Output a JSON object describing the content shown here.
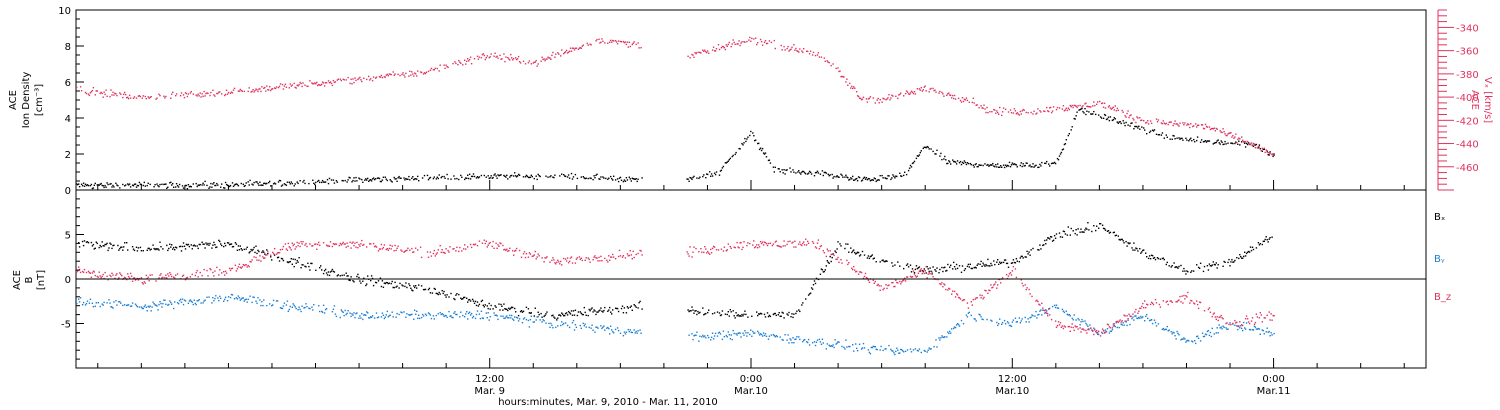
{
  "colors": {
    "black": "#000000",
    "red": "#e0335f",
    "blue": "#1a7fd4"
  },
  "chart_data": [
    {
      "type": "scatter",
      "panel": "top",
      "title": "",
      "x_range": [
        "2010-03-08 17:00",
        "2010-03-11 07:00"
      ],
      "ylabel_lines": [
        "ACE",
        "Ion Density",
        "[cm⁻³]"
      ],
      "ylim": [
        0,
        10
      ],
      "yticks": [
        0,
        2,
        4,
        6,
        8,
        10
      ],
      "yticklabels": [
        "0",
        "2",
        "4",
        "6",
        "8",
        "10"
      ],
      "y2label_lines": [
        "ACE",
        "Vₓ [km/s]"
      ],
      "y2lim": [
        -480,
        -325
      ],
      "y2ticks": [
        -460,
        -440,
        -420,
        -400,
        -380,
        -360,
        -340
      ],
      "y2ticklabels": [
        "-460",
        "-440",
        "-420",
        "-400",
        "-380",
        "-360",
        "-340"
      ],
      "data_gap": [
        "2010-03-09 19:00",
        "2010-03-09 21:00"
      ],
      "series": [
        {
          "axis": "left",
          "color": "#000000",
          "x": [
            "2010-03-08 17:00",
            "2010-03-08 20:00",
            "2010-03-09 00:00",
            "2010-03-09 06:00",
            "2010-03-09 09:00",
            "2010-03-09 12:00",
            "2010-03-09 15:00",
            "2010-03-09 19:00",
            "2010-03-09 21:00",
            "2010-03-09 22:30",
            "2010-03-09 23:30",
            "2010-03-10 00:00",
            "2010-03-10 01:00",
            "2010-03-10 02:00",
            "2010-03-10 03:00",
            "2010-03-10 05:00",
            "2010-03-10 07:00",
            "2010-03-10 08:00",
            "2010-03-10 09:00",
            "2010-03-10 11:00",
            "2010-03-10 14:00",
            "2010-03-10 15:00",
            "2010-03-10 17:00",
            "2010-03-10 19:00",
            "2010-03-10 21:00",
            "2010-03-10 23:00",
            "2010-03-11 00:00"
          ],
          "y": [
            0.3,
            0.3,
            0.3,
            0.6,
            0.7,
            0.8,
            0.8,
            0.6,
            0.6,
            1.0,
            2.5,
            3.2,
            1.2,
            1.0,
            1.0,
            0.6,
            0.8,
            2.5,
            1.6,
            1.4,
            1.5,
            4.5,
            3.8,
            3.0,
            2.7,
            2.6,
            2.0
          ]
        },
        {
          "axis": "right",
          "color": "#e0335f",
          "x": [
            "2010-03-08 17:00",
            "2010-03-08 20:00",
            "2010-03-09 00:00",
            "2010-03-09 06:00",
            "2010-03-09 09:00",
            "2010-03-09 12:00",
            "2010-03-09 14:00",
            "2010-03-09 17:00",
            "2010-03-09 19:00",
            "2010-03-09 21:00",
            "2010-03-10 00:00",
            "2010-03-10 02:00",
            "2010-03-10 03:00",
            "2010-03-10 04:00",
            "2010-03-10 05:00",
            "2010-03-10 06:00",
            "2010-03-10 08:00",
            "2010-03-10 10:00",
            "2010-03-10 11:00",
            "2010-03-10 13:00",
            "2010-03-10 16:00",
            "2010-03-10 18:00",
            "2010-03-10 21:00",
            "2010-03-10 23:00",
            "2010-03-11 00:00"
          ],
          "y": [
            -393,
            -400,
            -395,
            -384,
            -378,
            -363,
            -370,
            -350,
            -355,
            -365,
            -350,
            -358,
            -362,
            -378,
            -400,
            -402,
            -392,
            -402,
            -412,
            -412,
            -405,
            -420,
            -425,
            -440,
            -450
          ]
        }
      ]
    },
    {
      "type": "scatter",
      "panel": "bottom",
      "title": "",
      "x_range": [
        "2010-03-08 17:00",
        "2010-03-11 07:00"
      ],
      "ylabel_lines": [
        "ACE",
        "B",
        "[nT]"
      ],
      "ylim": [
        -10,
        10
      ],
      "yticks": [
        -5,
        0,
        5
      ],
      "yticklabels": [
        "-5",
        "0",
        "5"
      ],
      "zero_line": true,
      "data_gap": [
        "2010-03-09 19:00",
        "2010-03-09 21:00"
      ],
      "xticks": [
        "2010-03-09 12:00",
        "2010-03-10 00:00",
        "2010-03-10 12:00",
        "2010-03-11 00:00"
      ],
      "xticklabels": [
        [
          "12:00",
          "Mar. 9"
        ],
        [
          "0:00",
          "Mar.10"
        ],
        [
          "12:00",
          "Mar.10"
        ],
        [
          "0:00",
          "Mar.11"
        ]
      ],
      "xlabel": "hours:minutes, Mar. 9, 2010 - Mar. 11, 2010",
      "series": [
        {
          "name": "Bₓ",
          "color": "#000000",
          "x": [
            "2010-03-08 17:00",
            "2010-03-08 20:00",
            "2010-03-09 00:00",
            "2010-03-09 03:00",
            "2010-03-09 06:00",
            "2010-03-09 09:00",
            "2010-03-09 12:00",
            "2010-03-09 15:00",
            "2010-03-09 19:00",
            "2010-03-09 21:00",
            "2010-03-10 00:00",
            "2010-03-10 02:00",
            "2010-03-10 04:00",
            "2010-03-10 06:00",
            "2010-03-10 08:00",
            "2010-03-10 12:00",
            "2010-03-10 14:00",
            "2010-03-10 16:00",
            "2010-03-10 18:00",
            "2010-03-10 20:00",
            "2010-03-10 22:00",
            "2010-03-11 00:00"
          ],
          "y": [
            4,
            3.5,
            4,
            2,
            0,
            -1,
            -3,
            -4,
            -3,
            -3.5,
            -4,
            -4,
            4,
            2,
            1,
            2,
            5,
            6,
            3,
            1,
            2,
            5
          ]
        },
        {
          "name": "Bᵧ",
          "color": "#1a7fd4",
          "x": [
            "2010-03-08 17:00",
            "2010-03-08 20:00",
            "2010-03-09 00:00",
            "2010-03-09 03:00",
            "2010-03-09 06:00",
            "2010-03-09 09:00",
            "2010-03-09 12:00",
            "2010-03-09 15:00",
            "2010-03-09 19:00",
            "2010-03-09 21:00",
            "2010-03-10 00:00",
            "2010-03-10 03:00",
            "2010-03-10 06:00",
            "2010-03-10 08:00",
            "2010-03-10 10:00",
            "2010-03-10 12:00",
            "2010-03-10 14:00",
            "2010-03-10 16:00",
            "2010-03-10 18:00",
            "2010-03-10 20:00",
            "2010-03-10 22:00",
            "2010-03-11 00:00"
          ],
          "y": [
            -2.5,
            -3,
            -2,
            -3,
            -4,
            -4,
            -4,
            -5,
            -6,
            -6.5,
            -6,
            -7,
            -8,
            -8,
            -4,
            -5,
            -3,
            -6,
            -4,
            -7,
            -5,
            -6
          ]
        },
        {
          "name": "B_z",
          "color": "#e0335f",
          "x": [
            "2010-03-08 17:00",
            "2010-03-08 20:00",
            "2010-03-09 00:00",
            "2010-03-09 03:00",
            "2010-03-09 06:00",
            "2010-03-09 09:00",
            "2010-03-09 12:00",
            "2010-03-09 15:00",
            "2010-03-09 19:00",
            "2010-03-09 21:00",
            "2010-03-10 00:00",
            "2010-03-10 03:00",
            "2010-03-10 06:00",
            "2010-03-10 08:00",
            "2010-03-10 10:00",
            "2010-03-10 12:00",
            "2010-03-10 14:00",
            "2010-03-10 16:00",
            "2010-03-10 18:00",
            "2010-03-10 20:00",
            "2010-03-10 22:00",
            "2010-03-11 00:00"
          ],
          "y": [
            1,
            0,
            1,
            4,
            4,
            3,
            4,
            2,
            3,
            3,
            4,
            4,
            -1,
            1,
            -3,
            1,
            -5,
            -6,
            -3,
            -2,
            -5,
            -4
          ]
        }
      ]
    }
  ]
}
